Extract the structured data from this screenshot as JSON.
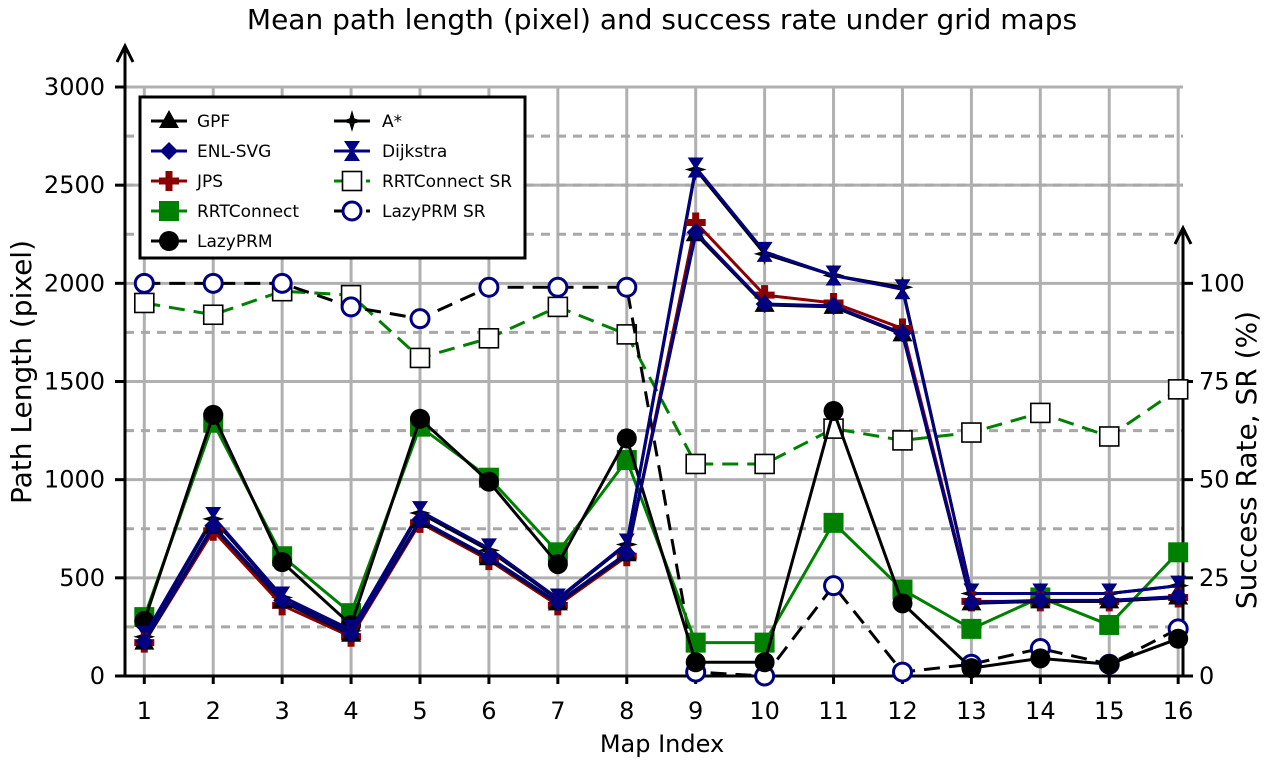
{
  "chart_data": {
    "type": "line",
    "title": "Mean path length (pixel) and success rate under grid maps",
    "xlabel": "Map Index",
    "ylabel": "Path Length (pixel)",
    "y2label": "Success Rate, SR (%)",
    "x": [
      1,
      2,
      3,
      4,
      5,
      6,
      7,
      8,
      9,
      10,
      11,
      12,
      13,
      14,
      15,
      16
    ],
    "x_ticks": [
      "1",
      "2",
      "3",
      "4",
      "5",
      "6",
      "7",
      "8",
      "9",
      "10",
      "11",
      "12",
      "13",
      "14",
      "15",
      "16"
    ],
    "ylim": [
      0,
      3000
    ],
    "y_ticks": [
      0,
      500,
      1000,
      1500,
      2000,
      2500,
      3000
    ],
    "y2lim": [
      0,
      150
    ],
    "y2_ticks": [
      0,
      25,
      50,
      75,
      100
    ],
    "grid": true,
    "legend_position": "top-left",
    "series": [
      {
        "name": "GPF",
        "axis": "left",
        "color": "#000000",
        "marker": "triangle",
        "dash": "solid",
        "values": [
          170,
          760,
          380,
          210,
          790,
          600,
          370,
          620,
          2250,
          1890,
          1880,
          1740,
          370,
          380,
          380,
          400
        ]
      },
      {
        "name": "ENL-SVG",
        "axis": "left",
        "color": "#000080",
        "marker": "diamond",
        "dash": "solid",
        "values": [
          175,
          765,
          385,
          215,
          795,
          605,
          375,
          625,
          2260,
          1895,
          1885,
          1745,
          375,
          385,
          385,
          405
        ]
      },
      {
        "name": "JPS",
        "axis": "left",
        "color": "#8b0000",
        "marker": "plus",
        "dash": "solid",
        "values": [
          170,
          740,
          360,
          200,
          780,
          590,
          360,
          610,
          2310,
          1940,
          1900,
          1770,
          380,
          380,
          380,
          400
        ]
      },
      {
        "name": "RRTConnect",
        "axis": "left",
        "color": "#008000",
        "marker": "square",
        "dash": "solid",
        "values": [
          300,
          1290,
          610,
          320,
          1270,
          1010,
          630,
          1100,
          170,
          170,
          780,
          440,
          240,
          400,
          260,
          630
        ]
      },
      {
        "name": "LazyPRM",
        "axis": "left",
        "color": "#000000",
        "marker": "circle",
        "dash": "solid",
        "values": [
          280,
          1330,
          580,
          260,
          1310,
          990,
          570,
          1210,
          70,
          70,
          1350,
          370,
          40,
          90,
          60,
          190
        ]
      },
      {
        "name": "A*",
        "axis": "left",
        "color": "#000000",
        "marker": "star",
        "dash": "solid",
        "values": [
          200,
          800,
          400,
          230,
          830,
          640,
          390,
          670,
          2580,
          2150,
          2040,
          1980,
          420,
          420,
          420,
          460
        ]
      },
      {
        "name": "Dijkstra",
        "axis": "left",
        "color": "#000080",
        "marker": "hourglass",
        "dash": "solid",
        "values": [
          205,
          810,
          405,
          235,
          840,
          650,
          395,
          675,
          2590,
          2160,
          2040,
          1970,
          420,
          420,
          420,
          460
        ]
      },
      {
        "name": "RRTConnect SR",
        "axis": "right",
        "color": "#008000",
        "marker": "open-square",
        "dash": "dashed",
        "values": [
          95,
          92,
          98,
          97,
          81,
          86,
          94,
          87,
          54,
          54,
          63,
          60,
          62,
          67,
          61,
          73
        ]
      },
      {
        "name": "LazyPRM SR",
        "axis": "right",
        "color": "#000000",
        "marker": "open-circle",
        "marker_color": "#000080",
        "dash": "dashed",
        "values": [
          100,
          100,
          100,
          94,
          91,
          99,
          99,
          99,
          1,
          0,
          23,
          1,
          3,
          7,
          3,
          12
        ]
      }
    ]
  }
}
